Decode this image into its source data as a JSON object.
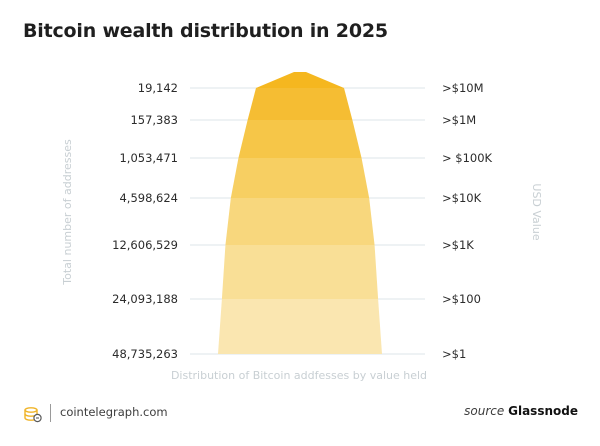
{
  "header": {
    "title": "Bitcoin wealth distribution in 2025"
  },
  "chart_data": {
    "type": "funnel",
    "title": "Bitcoin wealth distribution in 2025",
    "xlabel": "Distribution of Bitcoin addfesses by value held",
    "ylabel_left": "Total number of addresses",
    "ylabel_right": "USD Value",
    "tiers": [
      {
        "addresses": "19,142",
        "value": 19142,
        "usd": ">$10M"
      },
      {
        "addresses": "157,383",
        "value": 157383,
        "usd": ">$1M"
      },
      {
        "addresses": "1,053,471",
        "value": 1053471,
        "usd": "> $100K"
      },
      {
        "addresses": "4,598,624",
        "value": 4598624,
        "usd": ">$10K"
      },
      {
        "addresses": "12,606,529",
        "value": 12606529,
        "usd": ">$1K"
      },
      {
        "addresses": "24,093,188",
        "value": 24093188,
        "usd": ">$100"
      },
      {
        "addresses": "48,735,263",
        "value": 48735263,
        "usd": ">$1"
      }
    ],
    "colors": {
      "gridline": "#dde6ea",
      "label": "#2b2b2b",
      "axis_label": "#c8cfd3",
      "tier_fills": [
        "#f5b71f",
        "#f5bd33",
        "#f6c648",
        "#f7cf62",
        "#f8d77d",
        "#f9df96",
        "#fae6b0"
      ]
    }
  },
  "footer": {
    "site": "cointelegraph.com",
    "source_label": "source",
    "source_value": "Glassnode"
  }
}
